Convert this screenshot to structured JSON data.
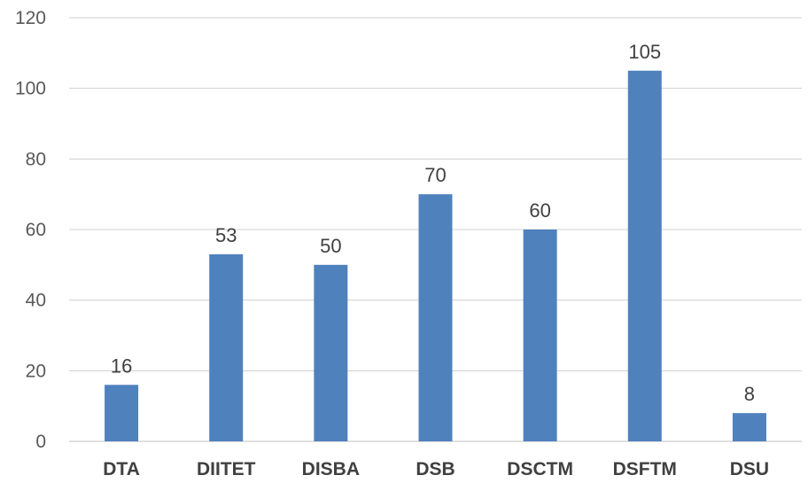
{
  "chart_data": {
    "type": "bar",
    "categories": [
      "DTA",
      "DIITET",
      "DISBA",
      "DSB",
      "DSCTM",
      "DSFTM",
      "DSU"
    ],
    "values": [
      16,
      53,
      50,
      70,
      60,
      105,
      8
    ],
    "data_labels": [
      "16",
      "53",
      "50",
      "70",
      "60",
      "105",
      "8"
    ],
    "y_ticks": [
      "0",
      "20",
      "40",
      "60",
      "80",
      "100",
      "120"
    ],
    "ylim": [
      0,
      120
    ],
    "y_step": 20,
    "grid": true,
    "legend": "none",
    "bar_color": "#4f81bd",
    "title": "",
    "xlabel": "",
    "ylabel": ""
  }
}
